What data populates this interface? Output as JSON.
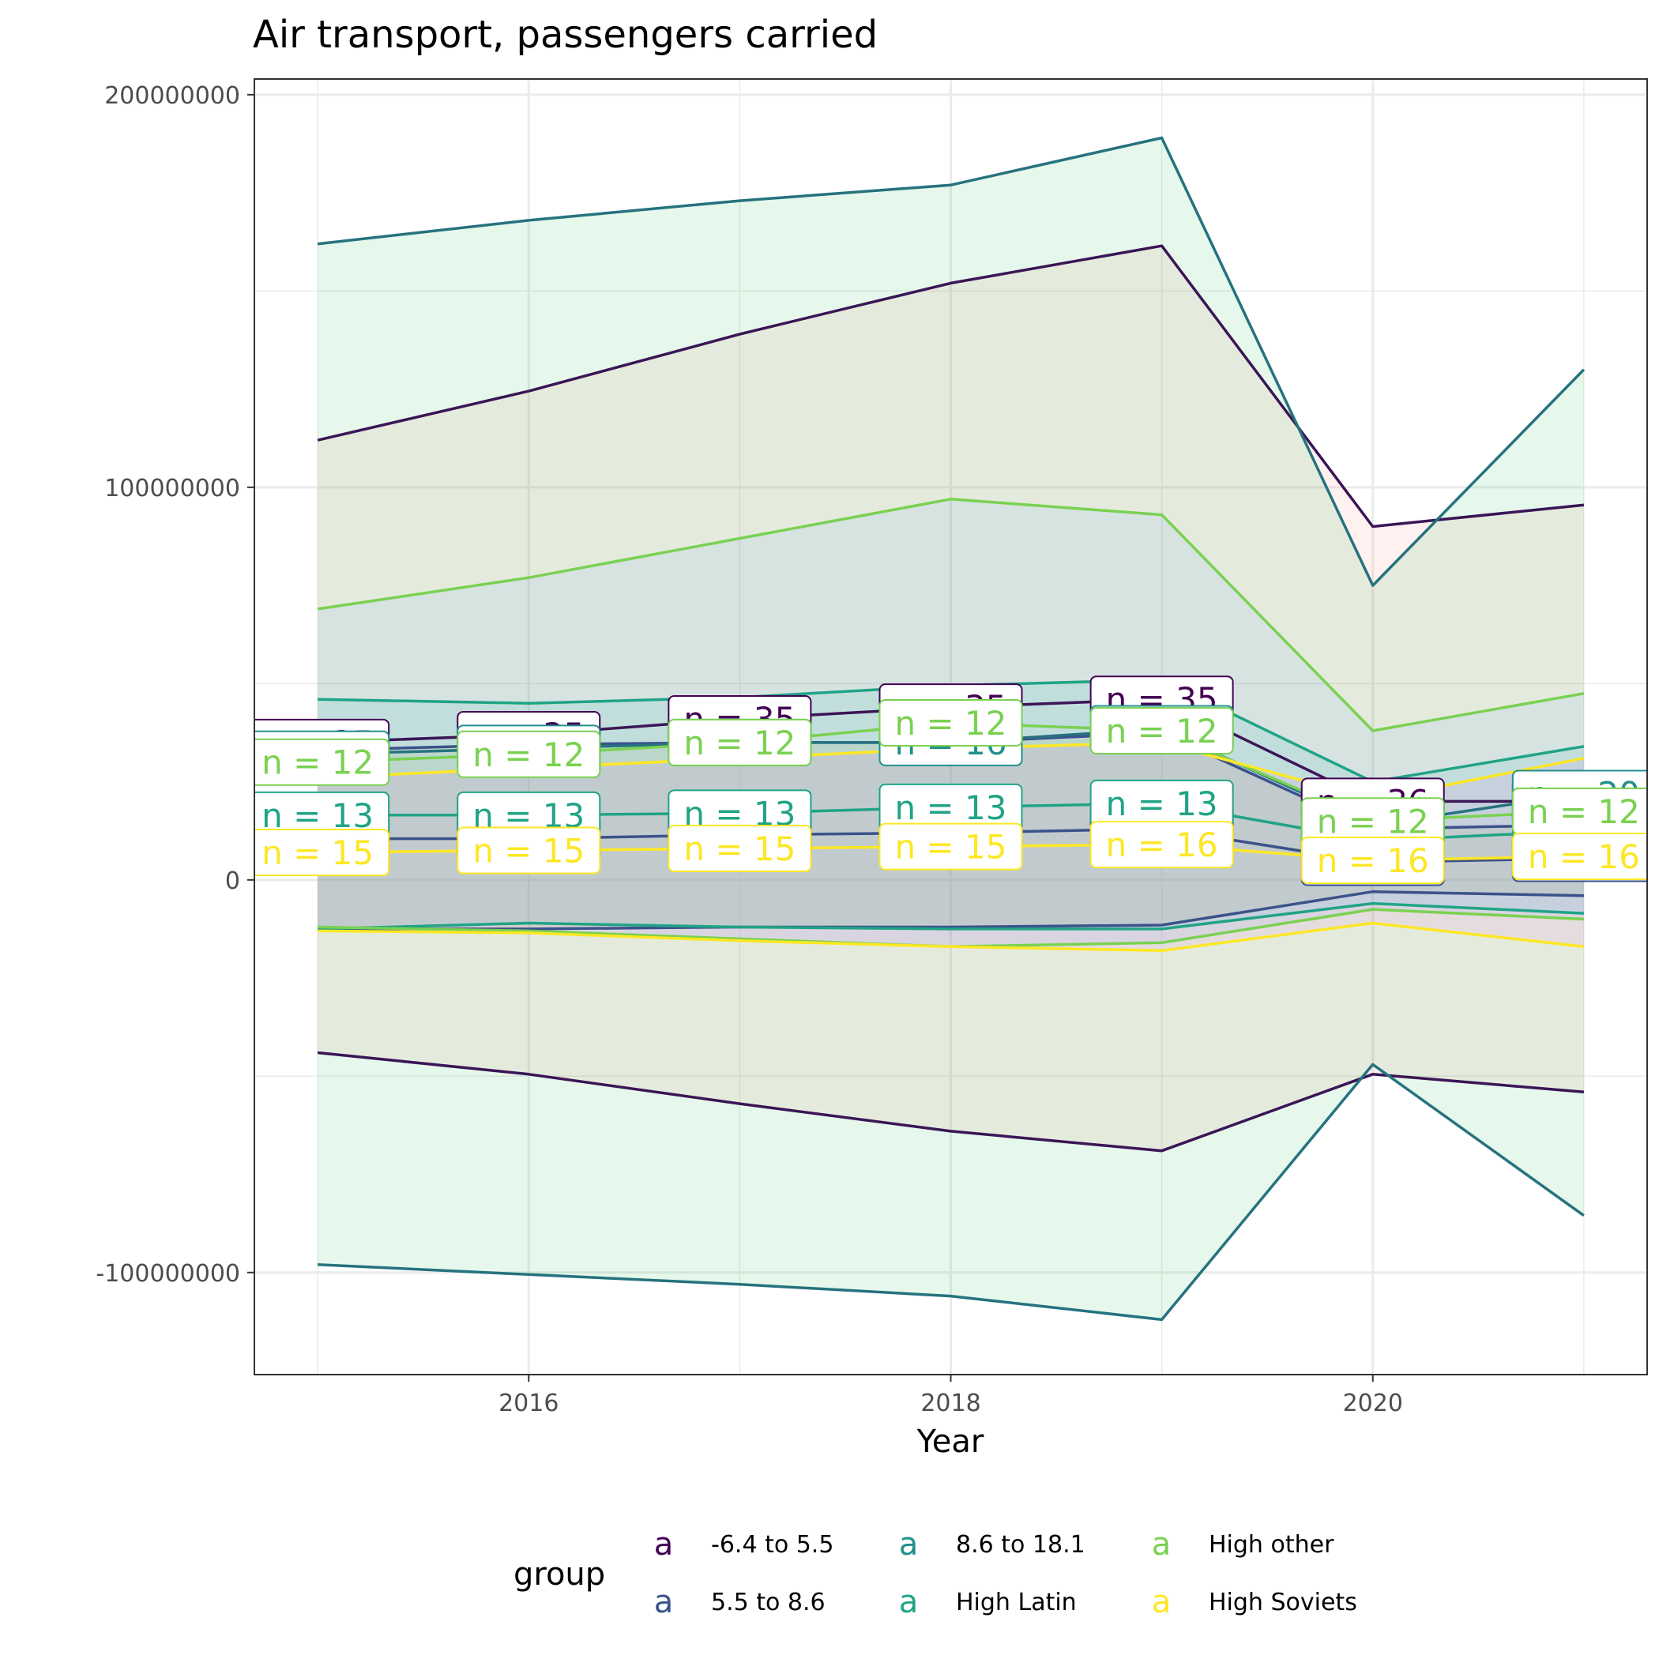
{
  "chart_data": {
    "type": "line",
    "title": "Air transport, passengers carried",
    "xlabel": "Year",
    "ylabel": "",
    "x": [
      2015,
      2016,
      2017,
      2018,
      2019,
      2020,
      2021
    ],
    "xlim": [
      2014.7,
      2021.3
    ],
    "ylim": [
      -126000000,
      204000000
    ],
    "x_ticks": [
      2016,
      2018,
      2020
    ],
    "x_tick_labels": [
      "2016",
      "2018",
      "2020"
    ],
    "y_ticks": [
      -100000000,
      0,
      100000000,
      200000000
    ],
    "y_tick_labels": [
      "-100000000",
      "0",
      "100000000",
      "200000000"
    ],
    "grid": true,
    "legend": {
      "title": "group",
      "position": "bottom",
      "key_glyph": "a"
    },
    "series": [
      {
        "name": "-6.4 to 5.5",
        "color": "#440154",
        "line_color": "#3b1556",
        "fill": "#f8766d",
        "mean": [
          35000000,
          37000000,
          41000000,
          44000000,
          46000000,
          20000000,
          20000000
        ],
        "upper": [
          112000000,
          124500000,
          139000000,
          152000000,
          161500000,
          90000000,
          95500000
        ],
        "lower": [
          -44000000,
          -49500000,
          -57000000,
          -64000000,
          -69000000,
          -49500000,
          -54000000
        ],
        "n_labels": [
          "n = 35",
          "n = 35",
          "n = 35",
          "n = 35",
          "n = 35",
          "n = 36",
          "n = 36"
        ]
      },
      {
        "name": "5.5 to 8.6",
        "color": "#3b528b",
        "line_color": "#3b528b",
        "fill": "#b79f00",
        "mean": [
          10500000,
          10500000,
          11500000,
          12000000,
          13000000,
          4500000,
          5500000
        ],
        "upper": [
          33000000,
          34500000,
          35000000,
          35000000,
          37500000,
          13000000,
          14000000
        ],
        "lower": [
          -12500000,
          -12500000,
          -12000000,
          -12000000,
          -11500000,
          -3000000,
          -4000000
        ],
        "n_labels": [
          "n = 15",
          "n = 15",
          "n = 15",
          "n = 15",
          "n = 16",
          "n = 16",
          "n = 16"
        ]
      },
      {
        "name": "8.6 to 18.1",
        "color": "#21908c",
        "line_color": "#26727f",
        "fill": "#00ba38",
        "mean": [
          32000000,
          33500000,
          35000000,
          35000000,
          38500000,
          14000000,
          22000000
        ],
        "upper": [
          162000000,
          168000000,
          173000000,
          177000000,
          189000000,
          75000000,
          130000000
        ],
        "lower": [
          -98000000,
          -100500000,
          -103000000,
          -106000000,
          -112000000,
          -47000000,
          -85500000
        ],
        "n_labels": [
          "n = 16",
          "n = 16",
          "n = 16",
          "n = 16",
          "n = 16",
          "n = 20",
          "n = 20"
        ]
      },
      {
        "name": "High Latin",
        "color": "#20a386",
        "line_color": "#20a386",
        "fill": "#00bfc4",
        "mean": [
          16500000,
          16500000,
          17000000,
          18500000,
          19500000,
          10000000,
          12500000
        ],
        "upper": [
          46000000,
          45000000,
          46500000,
          49500000,
          51000000,
          25000000,
          34000000
        ],
        "lower": [
          -12500000,
          -11000000,
          -12000000,
          -12500000,
          -12500000,
          -6000000,
          -8500000
        ],
        "n_labels": [
          "n = 13",
          "n = 13",
          "n = 13",
          "n = 13",
          "n = 13",
          "n = 13",
          "n = 13"
        ]
      },
      {
        "name": "High other",
        "color": "#7ad151",
        "line_color": "#7ad151",
        "fill": "#619cff",
        "mean": [
          30000000,
          32000000,
          35000000,
          40000000,
          38000000,
          15000000,
          17500000
        ],
        "upper": [
          69000000,
          77000000,
          87000000,
          97000000,
          93000000,
          38000000,
          47500000
        ],
        "lower": [
          -12000000,
          -13000000,
          -15000000,
          -17000000,
          -16000000,
          -7500000,
          -10000000
        ],
        "n_labels": [
          "n = 12",
          "n = 12",
          "n = 12",
          "n = 12",
          "n = 12",
          "n = 12",
          "n = 12"
        ]
      },
      {
        "name": "High Soviets",
        "color": "#fde725",
        "line_color": "#fde725",
        "fill": "#f564e3",
        "mean": [
          7000000,
          7500000,
          8000000,
          8500000,
          9000000,
          5000000,
          6000000
        ],
        "upper": [
          26000000,
          28500000,
          31000000,
          33500000,
          35000000,
          20500000,
          31000000
        ],
        "lower": [
          -13000000,
          -13500000,
          -15500000,
          -17000000,
          -18000000,
          -11000000,
          -17000000
        ],
        "n_labels": [
          "n = 15",
          "n = 15",
          "n = 15",
          "n = 15",
          "n = 16",
          "n = 16",
          "n = 16"
        ]
      }
    ]
  }
}
